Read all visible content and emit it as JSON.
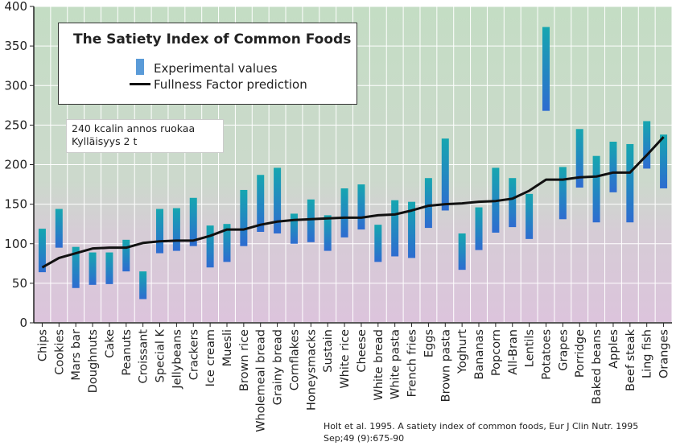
{
  "chart_data": {
    "type": "bar",
    "title": "The Satiety Index of Common Foods",
    "legend": {
      "experimental_label": "Experimental values",
      "prediction_label": "Fullness Factor prediction",
      "placement": "top-left"
    },
    "note": {
      "line1": "240 kcalin annos ruokaa",
      "line2": "Kylläisyys 2 t"
    },
    "citation": "Holt et al. 1995. A satiety index of common foods, Eur J Clin Nutr. 1995 Sep;49 (9):675-90",
    "ylim": [
      0,
      400
    ],
    "yticks": [
      0,
      50,
      100,
      150,
      200,
      250,
      300,
      350,
      400
    ],
    "grid": true,
    "categories": [
      "Chips",
      "Cookies",
      "Mars bar",
      "Doughnuts",
      "Cake",
      "Peanuts",
      "Croissant",
      "Special K",
      "Jellybeans",
      "Crackers",
      "Ice cream",
      "Muesli",
      "Brown rice",
      "Wholemeal bread",
      "Grainy bread",
      "Cornflakes",
      "Honeysmacks",
      "Sustain",
      "White rice",
      "Cheese",
      "White bread",
      "White pasta",
      "French fries",
      "Eggs",
      "Brown pasta",
      "Yoghurt",
      "Bananas",
      "Popcorn",
      "All-Bran",
      "Lentils",
      "Potatoes",
      "Grapes",
      "Porridge",
      "Baked beans",
      "Apples",
      "Beef steak",
      "Ling fish",
      "Oranges"
    ],
    "series": [
      {
        "kind": "range",
        "name": "Experimental values",
        "low": [
          64,
          95,
          44,
          48,
          49,
          65,
          30,
          88,
          91,
          97,
          70,
          77,
          97,
          115,
          113,
          100,
          102,
          91,
          108,
          118,
          77,
          84,
          82,
          120,
          142,
          67,
          92,
          114,
          121,
          106,
          268,
          131,
          171,
          127,
          165,
          127,
          195,
          170
        ],
        "high": [
          119,
          144,
          96,
          89,
          89,
          105,
          65,
          144,
          145,
          158,
          123,
          125,
          168,
          187,
          196,
          138,
          156,
          136,
          170,
          175,
          124,
          155,
          153,
          183,
          233,
          113,
          146,
          196,
          183,
          163,
          374,
          197,
          245,
          211,
          229,
          226,
          255,
          238
        ]
      },
      {
        "kind": "line",
        "name": "Fullness Factor prediction",
        "values": [
          70,
          82,
          88,
          94,
          95,
          95,
          101,
          103,
          104,
          104,
          110,
          118,
          118,
          124,
          128,
          130,
          131,
          132,
          133,
          133,
          136,
          137,
          142,
          148,
          150,
          151,
          153,
          154,
          157,
          167,
          181,
          181,
          184,
          185,
          190,
          190,
          212,
          235
        ]
      }
    ],
    "colors": {
      "bg_top": "#c6dec6",
      "bg_mid": "#cfd8cf",
      "bg_bottom": "#dcc6dc",
      "range_low": "#2f6fd0",
      "range_high": "#1aa2b2",
      "line": "#111111",
      "grid": "#ffffff"
    }
  }
}
